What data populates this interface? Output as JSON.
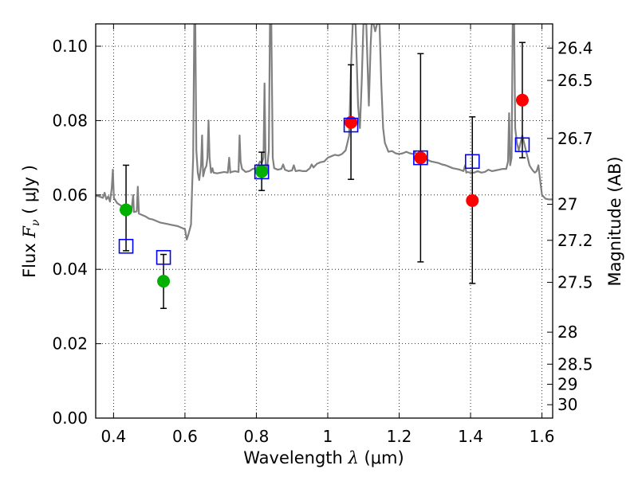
{
  "chart_data": {
    "type": "scatter",
    "xlabel": "Wavelength  λ (μm)",
    "xlabel_parts": {
      "main": "Wavelength  ",
      "symbol": "λ",
      "unit": " (μm)"
    },
    "ylabel": "Flux  F_ν ( μJy )",
    "ylabel_parts": {
      "main": "Flux  ",
      "symbol": "F",
      "sub": "ν",
      "unit": "  ( μJy )"
    },
    "y2label": "Magnitude (AB)",
    "xlim": [
      0.35,
      1.63
    ],
    "ylim": [
      0.0,
      0.106
    ],
    "grid": true,
    "grid_style": "dotted",
    "x_ticks": [
      {
        "value": 0.4,
        "label": "0.4"
      },
      {
        "value": 0.6,
        "label": "0.6"
      },
      {
        "value": 0.8,
        "label": "0.8"
      },
      {
        "value": 1.0,
        "label": "1"
      },
      {
        "value": 1.2,
        "label": "1.2"
      },
      {
        "value": 1.4,
        "label": "1.4"
      },
      {
        "value": 1.6,
        "label": "1.6"
      }
    ],
    "y_ticks": [
      {
        "value": 0.0,
        "label": "0.00"
      },
      {
        "value": 0.02,
        "label": "0.02"
      },
      {
        "value": 0.04,
        "label": "0.04"
      },
      {
        "value": 0.06,
        "label": "0.06"
      },
      {
        "value": 0.08,
        "label": "0.08"
      },
      {
        "value": 0.1,
        "label": "0.10"
      }
    ],
    "mag_ticks": [
      {
        "flux": 0.0995,
        "label": "26.4"
      },
      {
        "flux": 0.0908,
        "label": "26.5"
      },
      {
        "flux": 0.0752,
        "label": "26.7"
      },
      {
        "flux": 0.0575,
        "label": "27"
      },
      {
        "flux": 0.0478,
        "label": "27.2"
      },
      {
        "flux": 0.0365,
        "label": "27.5"
      },
      {
        "flux": 0.0231,
        "label": "28"
      },
      {
        "flux": 0.0145,
        "label": "28.5"
      },
      {
        "flux": 0.0091,
        "label": "29"
      },
      {
        "flux": 0.0036,
        "label": "30"
      }
    ],
    "series": [
      {
        "kind": "model_spectrum",
        "color": "#808080",
        "points": [
          [
            0.35,
            0.0598
          ],
          [
            0.36,
            0.0596
          ],
          [
            0.37,
            0.0592
          ],
          [
            0.375,
            0.0606
          ],
          [
            0.38,
            0.0588
          ],
          [
            0.385,
            0.0596
          ],
          [
            0.39,
            0.0582
          ],
          [
            0.395,
            0.0618
          ],
          [
            0.398,
            0.0668
          ],
          [
            0.401,
            0.0592
          ],
          [
            0.41,
            0.0578
          ],
          [
            0.42,
            0.0572
          ],
          [
            0.43,
            0.0566
          ],
          [
            0.44,
            0.0562
          ],
          [
            0.45,
            0.0558
          ],
          [
            0.455,
            0.06
          ],
          [
            0.457,
            0.0554
          ],
          [
            0.465,
            0.0556
          ],
          [
            0.468,
            0.0622
          ],
          [
            0.471,
            0.055
          ],
          [
            0.48,
            0.0546
          ],
          [
            0.49,
            0.0542
          ],
          [
            0.5,
            0.0536
          ],
          [
            0.51,
            0.0534
          ],
          [
            0.52,
            0.053
          ],
          [
            0.53,
            0.0526
          ],
          [
            0.54,
            0.0524
          ],
          [
            0.55,
            0.0522
          ],
          [
            0.56,
            0.052
          ],
          [
            0.57,
            0.0518
          ],
          [
            0.58,
            0.0516
          ],
          [
            0.59,
            0.0512
          ],
          [
            0.6,
            0.0508
          ],
          [
            0.605,
            0.048
          ],
          [
            0.61,
            0.0495
          ],
          [
            0.617,
            0.052
          ],
          [
            0.62,
            0.062
          ],
          [
            0.623,
            0.07
          ],
          [
            0.626,
            0.106
          ],
          [
            0.629,
            0.106
          ],
          [
            0.632,
            0.072
          ],
          [
            0.636,
            0.066
          ],
          [
            0.64,
            0.064
          ],
          [
            0.645,
            0.068
          ],
          [
            0.648,
            0.076
          ],
          [
            0.651,
            0.065
          ],
          [
            0.656,
            0.067
          ],
          [
            0.66,
            0.0678
          ],
          [
            0.663,
            0.07
          ],
          [
            0.666,
            0.08
          ],
          [
            0.669,
            0.07
          ],
          [
            0.673,
            0.066
          ],
          [
            0.677,
            0.0672
          ],
          [
            0.68,
            0.066
          ],
          [
            0.69,
            0.0658
          ],
          [
            0.7,
            0.066
          ],
          [
            0.71,
            0.0662
          ],
          [
            0.72,
            0.066
          ],
          [
            0.724,
            0.07
          ],
          [
            0.727,
            0.066
          ],
          [
            0.73,
            0.0662
          ],
          [
            0.74,
            0.0664
          ],
          [
            0.75,
            0.0662
          ],
          [
            0.753,
            0.076
          ],
          [
            0.756,
            0.069
          ],
          [
            0.76,
            0.067
          ],
          [
            0.77,
            0.0662
          ],
          [
            0.78,
            0.0664
          ],
          [
            0.79,
            0.067
          ],
          [
            0.8,
            0.0672
          ],
          [
            0.805,
            0.068
          ],
          [
            0.81,
            0.069
          ],
          [
            0.815,
            0.0685
          ],
          [
            0.82,
            0.07
          ],
          [
            0.823,
            0.09
          ],
          [
            0.826,
            0.068
          ],
          [
            0.83,
            0.067
          ],
          [
            0.835,
            0.072
          ],
          [
            0.838,
            0.106
          ],
          [
            0.842,
            0.106
          ],
          [
            0.846,
            0.07
          ],
          [
            0.85,
            0.0672
          ],
          [
            0.86,
            0.0668
          ],
          [
            0.87,
            0.067
          ],
          [
            0.875,
            0.0682
          ],
          [
            0.88,
            0.0668
          ],
          [
            0.89,
            0.0664
          ],
          [
            0.9,
            0.0666
          ],
          [
            0.905,
            0.068
          ],
          [
            0.91,
            0.0664
          ],
          [
            0.92,
            0.0666
          ],
          [
            0.93,
            0.0664
          ],
          [
            0.94,
            0.0664
          ],
          [
            0.95,
            0.0672
          ],
          [
            0.955,
            0.0682
          ],
          [
            0.96,
            0.0674
          ],
          [
            0.97,
            0.0684
          ],
          [
            0.98,
            0.0688
          ],
          [
            0.99,
            0.069
          ],
          [
            1.0,
            0.07
          ],
          [
            1.01,
            0.0704
          ],
          [
            1.02,
            0.0708
          ],
          [
            1.03,
            0.0706
          ],
          [
            1.04,
            0.071
          ],
          [
            1.05,
            0.072
          ],
          [
            1.06,
            0.076
          ],
          [
            1.065,
            0.094
          ],
          [
            1.07,
            0.106
          ],
          [
            1.078,
            0.106
          ],
          [
            1.085,
            0.084
          ],
          [
            1.09,
            0.078
          ],
          [
            1.095,
            0.09
          ],
          [
            1.1,
            0.106
          ],
          [
            1.108,
            0.106
          ],
          [
            1.115,
            0.084
          ],
          [
            1.12,
            0.1
          ],
          [
            1.123,
            0.106
          ],
          [
            1.128,
            0.106
          ],
          [
            1.133,
            0.104
          ],
          [
            1.138,
            0.106
          ],
          [
            1.145,
            0.106
          ],
          [
            1.15,
            0.09
          ],
          [
            1.155,
            0.078
          ],
          [
            1.16,
            0.074
          ],
          [
            1.17,
            0.0716
          ],
          [
            1.18,
            0.0718
          ],
          [
            1.19,
            0.0712
          ],
          [
            1.2,
            0.071
          ],
          [
            1.21,
            0.0712
          ],
          [
            1.22,
            0.0716
          ],
          [
            1.23,
            0.0712
          ],
          [
            1.24,
            0.071
          ],
          [
            1.245,
            0.0716
          ],
          [
            1.25,
            0.07
          ],
          [
            1.26,
            0.07
          ],
          [
            1.27,
            0.07
          ],
          [
            1.28,
            0.0694
          ],
          [
            1.29,
            0.069
          ],
          [
            1.3,
            0.0688
          ],
          [
            1.31,
            0.0686
          ],
          [
            1.32,
            0.0682
          ],
          [
            1.33,
            0.068
          ],
          [
            1.34,
            0.0676
          ],
          [
            1.35,
            0.0672
          ],
          [
            1.36,
            0.067
          ],
          [
            1.37,
            0.0668
          ],
          [
            1.38,
            0.0664
          ],
          [
            1.385,
            0.068
          ],
          [
            1.388,
            0.066
          ],
          [
            1.39,
            0.0662
          ],
          [
            1.4,
            0.066
          ],
          [
            1.41,
            0.066
          ],
          [
            1.42,
            0.0664
          ],
          [
            1.43,
            0.066
          ],
          [
            1.44,
            0.0662
          ],
          [
            1.45,
            0.0668
          ],
          [
            1.46,
            0.0664
          ],
          [
            1.47,
            0.0666
          ],
          [
            1.48,
            0.0668
          ],
          [
            1.49,
            0.067
          ],
          [
            1.5,
            0.067
          ],
          [
            1.505,
            0.069
          ],
          [
            1.508,
            0.082
          ],
          [
            1.511,
            0.068
          ],
          [
            1.515,
            0.07
          ],
          [
            1.518,
            0.106
          ],
          [
            1.522,
            0.106
          ],
          [
            1.525,
            0.078
          ],
          [
            1.53,
            0.074
          ],
          [
            1.535,
            0.072
          ],
          [
            1.54,
            0.074
          ],
          [
            1.545,
            0.076
          ],
          [
            1.55,
            0.074
          ],
          [
            1.555,
            0.072
          ],
          [
            1.56,
            0.07
          ],
          [
            1.565,
            0.068
          ],
          [
            1.57,
            0.0672
          ],
          [
            1.575,
            0.0665
          ],
          [
            1.58,
            0.066
          ],
          [
            1.585,
            0.0664
          ],
          [
            1.59,
            0.068
          ],
          [
            1.595,
            0.064
          ],
          [
            1.6,
            0.06
          ],
          [
            1.61,
            0.059
          ],
          [
            1.62,
            0.0588
          ],
          [
            1.63,
            0.0588
          ]
        ]
      },
      {
        "kind": "observed_green",
        "color": "#00b000",
        "points": [
          {
            "x": 0.435,
            "y": 0.056,
            "yerr_low": 0.045,
            "yerr_high": 0.068
          },
          {
            "x": 0.54,
            "y": 0.0368,
            "yerr_low": 0.0295,
            "yerr_high": 0.044
          },
          {
            "x": 0.815,
            "y": 0.0663,
            "yerr_low": 0.0612,
            "yerr_high": 0.0715
          }
        ]
      },
      {
        "kind": "observed_red",
        "color": "#ff0000",
        "points": [
          {
            "x": 1.065,
            "y": 0.0795,
            "yerr_low": 0.0642,
            "yerr_high": 0.095
          },
          {
            "x": 1.26,
            "y": 0.07,
            "yerr_low": 0.042,
            "yerr_high": 0.098
          },
          {
            "x": 1.405,
            "y": 0.0585,
            "yerr_low": 0.0362,
            "yerr_high": 0.081
          },
          {
            "x": 1.545,
            "y": 0.0855,
            "yerr_low": 0.07,
            "yerr_high": 0.101
          }
        ]
      },
      {
        "kind": "model_photometry",
        "color": "#0000ff",
        "marker": "open_square",
        "points": [
          {
            "x": 0.435,
            "y": 0.0462
          },
          {
            "x": 0.54,
            "y": 0.0432
          },
          {
            "x": 0.815,
            "y": 0.0662
          },
          {
            "x": 1.065,
            "y": 0.0788
          },
          {
            "x": 1.26,
            "y": 0.07
          },
          {
            "x": 1.405,
            "y": 0.069
          },
          {
            "x": 1.545,
            "y": 0.0735
          }
        ]
      }
    ]
  }
}
